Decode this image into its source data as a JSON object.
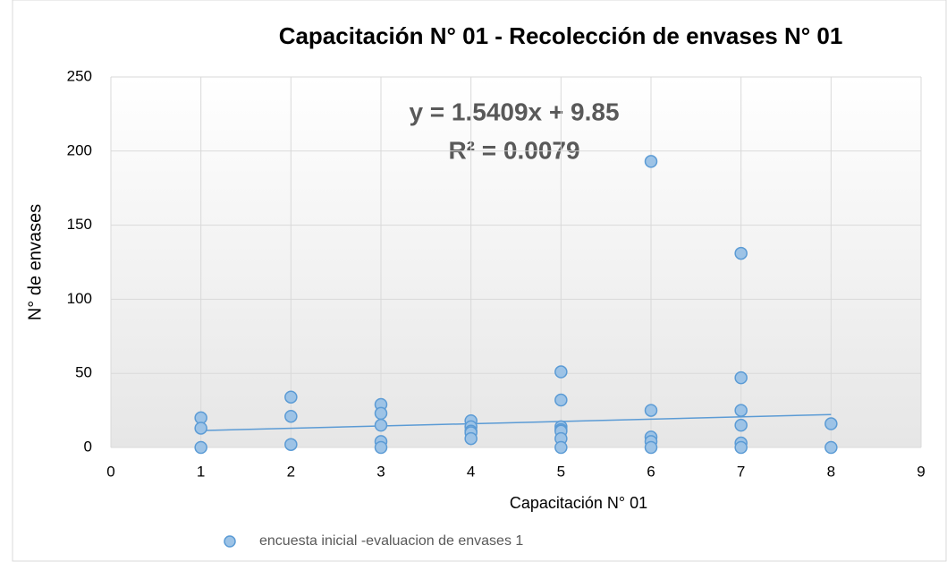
{
  "chart_data": {
    "type": "scatter",
    "title": "Capacitación N° 01 - Recolección de envases N° 01",
    "x_label": "Capacitación N° 01",
    "y_label": "N° de envases",
    "xlim": [
      0,
      9
    ],
    "xticks": [
      0,
      1,
      2,
      3,
      4,
      5,
      6,
      7,
      8,
      9
    ],
    "ylim": [
      0,
      250
    ],
    "yticks": [
      0,
      50,
      100,
      150,
      200,
      250
    ],
    "grid": true,
    "legend": "bottom",
    "series": [
      {
        "name": "encuesta inicial -evaluacion de envases 1",
        "color": "#9dc3e6",
        "edge_color": "#5b9bd5",
        "x": [
          1,
          1,
          1,
          2,
          2,
          2,
          3,
          3,
          3,
          3,
          3,
          4,
          4,
          4,
          4,
          4,
          5,
          5,
          5,
          5,
          5,
          5,
          5,
          6,
          6,
          6,
          6,
          6,
          7,
          7,
          7,
          7,
          7,
          7,
          8,
          8
        ],
        "values": [
          20,
          13,
          0,
          34,
          21,
          2,
          29,
          23,
          15,
          4,
          0,
          18,
          14,
          11,
          10,
          6,
          51,
          32,
          14,
          12,
          11,
          6,
          0,
          193,
          25,
          7,
          4,
          0,
          131,
          47,
          25,
          15,
          3,
          0,
          16,
          0
        ]
      }
    ],
    "trendline": {
      "label": "y = 1.5409x + 9.85",
      "r2_label": "R² = 0.0079",
      "slope": 1.5409,
      "intercept": 9.85,
      "x_range": [
        1,
        8
      ],
      "color": "#5b9bd5"
    }
  }
}
